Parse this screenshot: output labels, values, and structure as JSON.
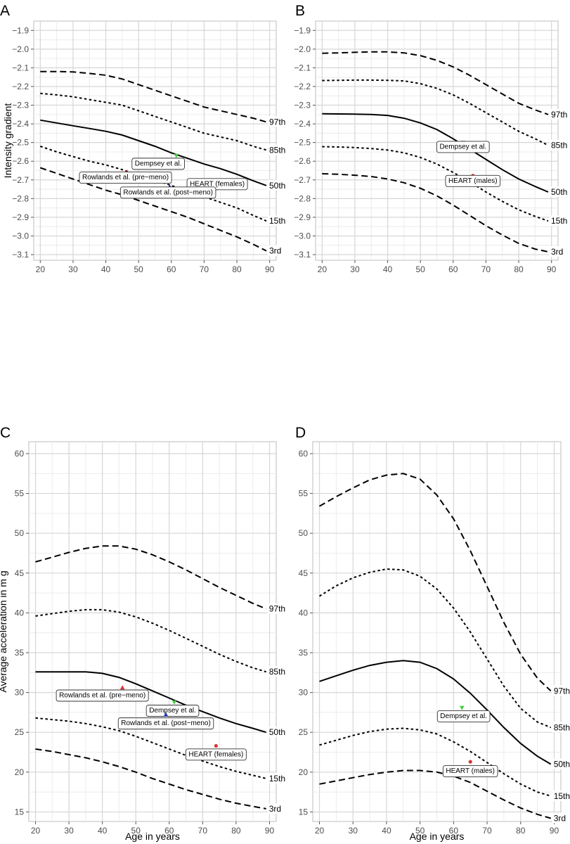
{
  "chart_data": [
    {
      "panel": "A",
      "type": "line",
      "ylabel": "Intensity gradient",
      "xlabel": "",
      "xlim": [
        18,
        92
      ],
      "ylim": [
        -3.13,
        -1.85
      ],
      "x_ticks": [
        20,
        30,
        40,
        50,
        60,
        70,
        80,
        90
      ],
      "y_ticks": [
        -3.1,
        -3.0,
        -2.9,
        -2.8,
        -2.7,
        -2.6,
        -2.5,
        -2.4,
        -2.3,
        -2.2,
        -2.1,
        -2.0,
        -1.9
      ],
      "y_tick_labels": [
        "−3.1",
        "−3.0",
        "−2.9",
        "−2.8",
        "−2.7",
        "−2.6",
        "−2.5",
        "−2.4",
        "−2.3",
        "−2.2",
        "−2.1",
        "−2.0",
        "−1.9"
      ],
      "series": [
        {
          "name": "97th",
          "style": "longdash",
          "x": [
            20,
            25,
            30,
            35,
            40,
            45,
            50,
            55,
            60,
            65,
            70,
            75,
            80,
            85,
            89
          ],
          "y": [
            -2.12,
            -2.12,
            -2.122,
            -2.13,
            -2.14,
            -2.16,
            -2.19,
            -2.22,
            -2.25,
            -2.28,
            -2.31,
            -2.33,
            -2.35,
            -2.37,
            -2.39
          ]
        },
        {
          "name": "85th",
          "style": "dotted",
          "x": [
            20,
            25,
            30,
            35,
            40,
            45,
            50,
            55,
            60,
            65,
            70,
            75,
            80,
            85,
            89
          ],
          "y": [
            -2.237,
            -2.245,
            -2.255,
            -2.27,
            -2.285,
            -2.3,
            -2.33,
            -2.36,
            -2.39,
            -2.42,
            -2.45,
            -2.47,
            -2.49,
            -2.52,
            -2.54
          ]
        },
        {
          "name": "50th",
          "style": "solid",
          "x": [
            20,
            25,
            30,
            35,
            40,
            45,
            50,
            55,
            60,
            65,
            70,
            75,
            80,
            85,
            89
          ],
          "y": [
            -2.38,
            -2.395,
            -2.41,
            -2.425,
            -2.44,
            -2.46,
            -2.49,
            -2.52,
            -2.555,
            -2.585,
            -2.615,
            -2.64,
            -2.67,
            -2.705,
            -2.73
          ]
        },
        {
          "name": "15th",
          "style": "dotted",
          "x": [
            20,
            25,
            30,
            35,
            40,
            45,
            50,
            55,
            60,
            65,
            70,
            75,
            80,
            85,
            89
          ],
          "y": [
            -2.52,
            -2.55,
            -2.575,
            -2.6,
            -2.62,
            -2.645,
            -2.675,
            -2.7,
            -2.73,
            -2.76,
            -2.79,
            -2.82,
            -2.85,
            -2.89,
            -2.92
          ]
        },
        {
          "name": "3rd",
          "style": "longdash",
          "x": [
            20,
            25,
            30,
            35,
            40,
            45,
            50,
            55,
            60,
            65,
            70,
            75,
            80,
            85,
            89
          ],
          "y": [
            -2.635,
            -2.665,
            -2.695,
            -2.725,
            -2.755,
            -2.78,
            -2.81,
            -2.84,
            -2.87,
            -2.9,
            -2.935,
            -2.97,
            -3.005,
            -3.045,
            -3.08
          ]
        }
      ],
      "percentile_labels": [
        "97th",
        "85th",
        "50th",
        "15th",
        "3rd"
      ],
      "annotations": [
        {
          "text": "Dempsey et al.",
          "x": 61.5,
          "y": -2.57,
          "marker": "triangle-down",
          "color": "#44cc44",
          "label_x": 56,
          "label_y": -2.61
        },
        {
          "text": "Rowlands et al. (pre−meno)",
          "x": 46.5,
          "y": -2.658,
          "marker": "triangle-up",
          "color": "#dd3333",
          "label_x": 46,
          "label_y": -2.684
        },
        {
          "text": "HEART (females)",
          "x": 74,
          "y": -2.745,
          "marker": "circle",
          "color": "#dd3333",
          "label_x": 74,
          "label_y": -2.719
        },
        {
          "text": "Rowlands et al. (post−meno)",
          "x": 59.5,
          "y": -2.738,
          "marker": "triangle-up",
          "color": "#2233bb",
          "label_x": 59,
          "label_y": -2.764
        }
      ]
    },
    {
      "panel": "B",
      "type": "line",
      "ylabel": "",
      "xlabel": "",
      "xlim": [
        18,
        92
      ],
      "ylim": [
        -3.13,
        -1.85
      ],
      "x_ticks": [
        20,
        30,
        40,
        50,
        60,
        70,
        80,
        90
      ],
      "y_ticks": [
        -3.1,
        -3.0,
        -2.9,
        -2.8,
        -2.7,
        -2.6,
        -2.5,
        -2.4,
        -2.3,
        -2.2,
        -2.1,
        -2.0,
        -1.9
      ],
      "y_tick_labels": [
        "−3.1",
        "−3.0",
        "−2.9",
        "−2.8",
        "−2.7",
        "−2.6",
        "−2.5",
        "−2.4",
        "−2.3",
        "−2.2",
        "−2.1",
        "−2.0",
        "−1.9"
      ],
      "series": [
        {
          "name": "97th",
          "style": "longdash",
          "x": [
            20,
            25,
            30,
            35,
            40,
            45,
            50,
            55,
            60,
            65,
            70,
            75,
            80,
            85,
            89
          ],
          "y": [
            -2.022,
            -2.02,
            -2.017,
            -2.015,
            -2.015,
            -2.02,
            -2.035,
            -2.06,
            -2.095,
            -2.14,
            -2.19,
            -2.24,
            -2.29,
            -2.325,
            -2.35
          ]
        },
        {
          "name": "85th",
          "style": "dotted",
          "x": [
            20,
            25,
            30,
            35,
            40,
            45,
            50,
            55,
            60,
            65,
            70,
            75,
            80,
            85,
            89
          ],
          "y": [
            -2.168,
            -2.167,
            -2.166,
            -2.166,
            -2.167,
            -2.17,
            -2.185,
            -2.21,
            -2.245,
            -2.29,
            -2.34,
            -2.39,
            -2.44,
            -2.48,
            -2.515
          ]
        },
        {
          "name": "50th",
          "style": "solid",
          "x": [
            20,
            25,
            30,
            35,
            40,
            45,
            50,
            55,
            60,
            65,
            70,
            75,
            80,
            85,
            89
          ],
          "y": [
            -2.346,
            -2.347,
            -2.348,
            -2.35,
            -2.355,
            -2.37,
            -2.395,
            -2.43,
            -2.48,
            -2.535,
            -2.59,
            -2.645,
            -2.695,
            -2.735,
            -2.765
          ]
        },
        {
          "name": "15th",
          "style": "dotted",
          "x": [
            20,
            25,
            30,
            35,
            40,
            45,
            50,
            55,
            60,
            65,
            70,
            75,
            80,
            85,
            89
          ],
          "y": [
            -2.522,
            -2.524,
            -2.527,
            -2.532,
            -2.54,
            -2.555,
            -2.58,
            -2.615,
            -2.66,
            -2.71,
            -2.765,
            -2.815,
            -2.86,
            -2.895,
            -2.92
          ]
        },
        {
          "name": "3rd",
          "style": "longdash",
          "x": [
            20,
            25,
            30,
            35,
            40,
            45,
            50,
            55,
            60,
            65,
            70,
            75,
            80,
            85,
            89
          ],
          "y": [
            -2.667,
            -2.67,
            -2.675,
            -2.682,
            -2.695,
            -2.715,
            -2.745,
            -2.785,
            -2.835,
            -2.89,
            -2.945,
            -2.995,
            -3.04,
            -3.07,
            -3.085
          ]
        }
      ],
      "percentile_labels": [
        "97th",
        "85th",
        "50th",
        "15th",
        "3rd"
      ],
      "annotations": [
        {
          "text": "Dempsey et al.",
          "x": 63,
          "y": -2.5,
          "marker": "triangle-down",
          "color": "#44cc44",
          "label_x": 63,
          "label_y": -2.52
        },
        {
          "text": "HEART (males)",
          "x": 66,
          "y": -2.677,
          "marker": "circle",
          "color": "#dd3333",
          "label_x": 66,
          "label_y": -2.702
        }
      ]
    },
    {
      "panel": "C",
      "type": "line",
      "ylabel": "Average acceleration in m g",
      "xlabel": "Age in years",
      "xlim": [
        18,
        92
      ],
      "ylim": [
        13.8,
        61.5
      ],
      "x_ticks": [
        20,
        30,
        40,
        50,
        60,
        70,
        80,
        90
      ],
      "y_ticks": [
        15,
        20,
        25,
        30,
        35,
        40,
        45,
        50,
        55,
        60
      ],
      "y_tick_labels": [
        "15",
        "20",
        "25",
        "30",
        "35",
        "40",
        "45",
        "50",
        "55",
        "60"
      ],
      "series": [
        {
          "name": "97th",
          "style": "longdash",
          "x": [
            20,
            25,
            30,
            35,
            40,
            45,
            50,
            55,
            60,
            65,
            70,
            75,
            80,
            85,
            89
          ],
          "y": [
            46.4,
            47.0,
            47.6,
            48.1,
            48.4,
            48.4,
            48.0,
            47.3,
            46.4,
            45.4,
            44.3,
            43.2,
            42.2,
            41.2,
            40.5
          ]
        },
        {
          "name": "85th",
          "style": "dotted",
          "x": [
            20,
            25,
            30,
            35,
            40,
            45,
            50,
            55,
            60,
            65,
            70,
            75,
            80,
            85,
            89
          ],
          "y": [
            39.6,
            39.9,
            40.2,
            40.4,
            40.4,
            40.1,
            39.5,
            38.7,
            37.8,
            36.8,
            35.8,
            34.8,
            33.9,
            33.1,
            32.6
          ]
        },
        {
          "name": "50th",
          "style": "solid",
          "x": [
            20,
            25,
            30,
            35,
            40,
            45,
            50,
            55,
            60,
            65,
            70,
            75,
            80,
            85,
            89
          ],
          "y": [
            32.6,
            32.6,
            32.6,
            32.6,
            32.4,
            31.9,
            31.1,
            30.2,
            29.3,
            28.4,
            27.6,
            26.8,
            26.1,
            25.5,
            25.0
          ]
        },
        {
          "name": "15th",
          "style": "dotted",
          "x": [
            20,
            25,
            30,
            35,
            40,
            45,
            50,
            55,
            60,
            65,
            70,
            75,
            80,
            85,
            89
          ],
          "y": [
            26.8,
            26.6,
            26.4,
            26.1,
            25.7,
            25.2,
            24.5,
            23.7,
            22.9,
            22.1,
            21.4,
            20.7,
            20.1,
            19.6,
            19.2
          ]
        },
        {
          "name": "3rd",
          "style": "longdash",
          "x": [
            20,
            25,
            30,
            35,
            40,
            45,
            50,
            55,
            60,
            65,
            70,
            75,
            80,
            85,
            89
          ],
          "y": [
            22.9,
            22.6,
            22.2,
            21.8,
            21.3,
            20.7,
            20.0,
            19.2,
            18.5,
            17.8,
            17.2,
            16.6,
            16.1,
            15.7,
            15.4
          ]
        }
      ],
      "percentile_labels": [
        "97th",
        "85th",
        "50th",
        "15th",
        "3rd"
      ],
      "annotations": [
        {
          "text": "Rowlands et al. (pre−meno)",
          "x": 46,
          "y": 30.6,
          "marker": "triangle-up",
          "color": "#dd3333",
          "label_x": 40,
          "label_y": 29.7
        },
        {
          "text": "Dempsey et al.",
          "x": 61.5,
          "y": 28.8,
          "marker": "triangle-down",
          "color": "#44cc44",
          "label_x": 61,
          "label_y": 27.8
        },
        {
          "text": "Rowlands et al. (post−meno)",
          "x": 59,
          "y": 27.2,
          "marker": "triangle-up",
          "color": "#2233bb",
          "label_x": 59,
          "label_y": 26.2
        },
        {
          "text": "HEART (females)",
          "x": 74,
          "y": 23.3,
          "marker": "circle",
          "color": "#dd3333",
          "label_x": 74,
          "label_y": 22.3
        }
      ]
    },
    {
      "panel": "D",
      "type": "line",
      "ylabel": "",
      "xlabel": "Age in years",
      "xlim": [
        18,
        92
      ],
      "ylim": [
        13.8,
        61.5
      ],
      "x_ticks": [
        20,
        30,
        40,
        50,
        60,
        70,
        80,
        90
      ],
      "y_ticks": [
        15,
        20,
        25,
        30,
        35,
        40,
        45,
        50,
        55,
        60
      ],
      "y_tick_labels": [
        "15",
        "20",
        "25",
        "30",
        "35",
        "40",
        "45",
        "50",
        "55",
        "60"
      ],
      "series": [
        {
          "name": "97th",
          "style": "longdash",
          "x": [
            20,
            25,
            30,
            35,
            40,
            45,
            50,
            55,
            60,
            65,
            70,
            75,
            80,
            85,
            89
          ],
          "y": [
            53.4,
            54.6,
            55.7,
            56.7,
            57.3,
            57.5,
            56.8,
            54.8,
            51.8,
            47.8,
            43.3,
            38.8,
            34.8,
            31.8,
            30.2
          ]
        },
        {
          "name": "85th",
          "style": "dotted",
          "x": [
            20,
            25,
            30,
            35,
            40,
            45,
            50,
            55,
            60,
            65,
            70,
            75,
            80,
            85,
            89
          ],
          "y": [
            42.1,
            43.4,
            44.4,
            45.1,
            45.5,
            45.4,
            44.6,
            43.0,
            40.6,
            37.6,
            34.2,
            30.8,
            28.0,
            26.3,
            25.6
          ]
        },
        {
          "name": "50th",
          "style": "solid",
          "x": [
            20,
            25,
            30,
            35,
            40,
            45,
            50,
            55,
            60,
            65,
            70,
            75,
            80,
            85,
            89
          ],
          "y": [
            31.4,
            32.1,
            32.8,
            33.4,
            33.8,
            34.0,
            33.8,
            33.0,
            31.7,
            29.9,
            27.8,
            25.6,
            23.6,
            22.0,
            21.0
          ]
        },
        {
          "name": "15th",
          "style": "dotted",
          "x": [
            20,
            25,
            30,
            35,
            40,
            45,
            50,
            55,
            60,
            65,
            70,
            75,
            80,
            85,
            89
          ],
          "y": [
            23.4,
            24.0,
            24.6,
            25.1,
            25.4,
            25.5,
            25.3,
            24.8,
            23.8,
            22.6,
            21.2,
            19.8,
            18.5,
            17.5,
            17.0
          ]
        },
        {
          "name": "3rd",
          "style": "longdash",
          "x": [
            20,
            25,
            30,
            35,
            40,
            45,
            50,
            55,
            60,
            65,
            70,
            75,
            80,
            85,
            89
          ],
          "y": [
            18.5,
            18.9,
            19.3,
            19.7,
            20.0,
            20.2,
            20.2,
            20.0,
            19.5,
            18.7,
            17.6,
            16.5,
            15.5,
            14.7,
            14.2
          ]
        }
      ],
      "percentile_labels": [
        "97th",
        "85th",
        "50th",
        "15th",
        "3rd"
      ],
      "annotations": [
        {
          "text": "Dempsey et al.",
          "x": 62.5,
          "y": 28.1,
          "marker": "triangle-down",
          "color": "#44cc44",
          "label_x": 63,
          "label_y": 27.1
        },
        {
          "text": "HEART (males)",
          "x": 65,
          "y": 21.3,
          "marker": "circle",
          "color": "#dd3333",
          "label_x": 65,
          "label_y": 20.2
        }
      ]
    }
  ]
}
